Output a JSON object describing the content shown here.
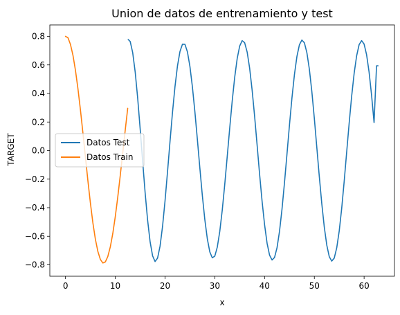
{
  "chart_data": {
    "type": "line",
    "title": "Union de datos de entrenamiento y test",
    "xlabel": "x",
    "ylabel": "TARGET",
    "xlim": [
      -3.15,
      66.1
    ],
    "ylim": [
      -0.88,
      0.88
    ],
    "x_ticks": [
      0,
      10,
      20,
      30,
      40,
      50,
      60
    ],
    "x_tick_labels": [
      "0",
      "10",
      "20",
      "30",
      "40",
      "50",
      "60"
    ],
    "y_ticks": [
      -0.8,
      -0.6,
      -0.4,
      -0.2,
      0.0,
      0.2,
      0.4,
      0.6,
      0.8
    ],
    "y_tick_labels": [
      "−0.8",
      "−0.6",
      "−0.4",
      "−0.2",
      "0.0",
      "0.2",
      "0.4",
      "0.6",
      "0.8"
    ],
    "grid": false,
    "legend_position": "center-left",
    "series": [
      {
        "name": "Datos Test",
        "color": "#1f77b4",
        "x": [
          12.6,
          13.0,
          13.5,
          14.0,
          14.5,
          15.0,
          15.5,
          16.0,
          16.5,
          17.0,
          17.5,
          18.0,
          18.5,
          19.0,
          19.5,
          20.0,
          20.5,
          21.0,
          21.5,
          22.0,
          22.5,
          23.0,
          23.5,
          24.0,
          24.5,
          25.0,
          25.5,
          26.0,
          26.5,
          27.0,
          27.5,
          28.0,
          28.5,
          29.0,
          29.5,
          30.0,
          30.5,
          31.0,
          31.5,
          32.0,
          32.5,
          33.0,
          33.5,
          34.0,
          34.5,
          35.0,
          35.5,
          36.0,
          36.5,
          37.0,
          37.5,
          38.0,
          38.5,
          39.0,
          39.5,
          40.0,
          40.5,
          41.0,
          41.5,
          42.0,
          42.5,
          43.0,
          43.5,
          44.0,
          44.5,
          45.0,
          45.5,
          46.0,
          46.5,
          47.0,
          47.5,
          48.0,
          48.5,
          49.0,
          49.5,
          50.0,
          50.5,
          51.0,
          51.5,
          52.0,
          52.5,
          53.0,
          53.5,
          54.0,
          54.5,
          55.0,
          55.5,
          56.0,
          56.5,
          57.0,
          57.5,
          58.0,
          58.5,
          59.0,
          59.5,
          60.0,
          60.5,
          61.0,
          61.5,
          62.0,
          62.5,
          62.8
        ],
        "y": [
          0.778,
          0.764,
          0.686,
          0.551,
          0.368,
          0.153,
          -0.075,
          -0.295,
          -0.488,
          -0.639,
          -0.737,
          -0.777,
          -0.753,
          -0.669,
          -0.531,
          -0.352,
          -0.148,
          0.064,
          0.268,
          0.448,
          0.593,
          0.694,
          0.745,
          0.744,
          0.691,
          0.589,
          0.446,
          0.271,
          0.077,
          -0.124,
          -0.316,
          -0.485,
          -0.619,
          -0.71,
          -0.751,
          -0.739,
          -0.676,
          -0.566,
          -0.416,
          -0.236,
          -0.04,
          0.159,
          0.348,
          0.514,
          0.645,
          0.732,
          0.77,
          0.755,
          0.69,
          0.577,
          0.423,
          0.24,
          0.039,
          -0.165,
          -0.355,
          -0.519,
          -0.648,
          -0.732,
          -0.766,
          -0.749,
          -0.681,
          -0.566,
          -0.411,
          -0.226,
          -0.025,
          0.178,
          0.368,
          0.532,
          0.659,
          0.741,
          0.774,
          0.755,
          0.686,
          0.57,
          0.413,
          0.225,
          0.021,
          -0.183,
          -0.373,
          -0.536,
          -0.662,
          -0.743,
          -0.774,
          -0.753,
          -0.681,
          -0.563,
          -0.404,
          -0.214,
          -0.01,
          0.193,
          0.381,
          0.541,
          0.664,
          0.742,
          0.77,
          0.746,
          0.671,
          0.55,
          0.388,
          0.196,
          0.594,
          0.594
        ],
        "y_note_free": true
      },
      {
        "name": "Datos Train",
        "color": "#ff7f0e",
        "x": [
          0.0,
          0.5,
          1.0,
          1.5,
          2.0,
          2.5,
          3.0,
          3.5,
          4.0,
          4.5,
          5.0,
          5.5,
          6.0,
          6.5,
          7.0,
          7.5,
          8.0,
          8.5,
          9.0,
          9.5,
          10.0,
          10.5,
          11.0,
          11.5,
          12.0,
          12.5
        ],
        "y": [
          0.8,
          0.79,
          0.743,
          0.667,
          0.562,
          0.433,
          0.285,
          0.124,
          -0.044,
          -0.211,
          -0.367,
          -0.506,
          -0.62,
          -0.706,
          -0.762,
          -0.787,
          -0.78,
          -0.742,
          -0.675,
          -0.581,
          -0.463,
          -0.326,
          -0.175,
          -0.017,
          0.143,
          0.296
        ]
      }
    ]
  }
}
